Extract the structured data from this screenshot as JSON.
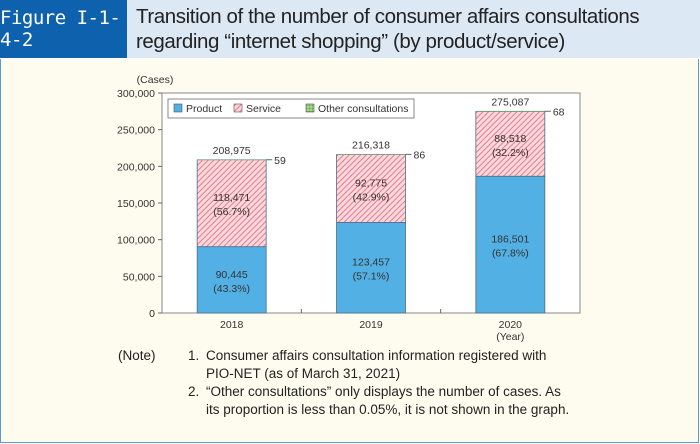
{
  "header": {
    "figure_label": "Figure I-1-4-2",
    "title_line1": "Transition of the number of consumer affairs consultations",
    "title_line2": "regarding “internet shopping” (by product/service)"
  },
  "chart_data": {
    "type": "bar",
    "stacked": true,
    "categories": [
      "2018",
      "2019",
      "2020"
    ],
    "xlabel": "(Year)",
    "ylabel": "(Cases)",
    "ylim": [
      0,
      300000
    ],
    "yticks": [
      0,
      50000,
      100000,
      150000,
      200000,
      250000,
      300000
    ],
    "ytick_labels": [
      "0",
      "50,000",
      "100,000",
      "150,000",
      "200,000",
      "250,000",
      "300,000"
    ],
    "legend_position": "top-left",
    "series": [
      {
        "name": "Product",
        "values": [
          90445,
          123457,
          186501
        ],
        "labels": [
          "90,445",
          "123,457",
          "186,501"
        ],
        "pct": [
          "(43.3%)",
          "(57.1%)",
          "(67.8%)"
        ],
        "color": "#52b0e4"
      },
      {
        "name": "Service",
        "values": [
          118471,
          92775,
          88518
        ],
        "labels": [
          "118,471",
          "92,775",
          "88,518"
        ],
        "pct": [
          "(56.7%)",
          "(42.9%)",
          "(32.2%)"
        ],
        "color": "#e87a8a"
      },
      {
        "name": "Other consultations",
        "values": [
          59,
          86,
          68
        ],
        "labels": [
          "59",
          "86",
          "68"
        ],
        "color": "#6cb04a"
      }
    ],
    "totals": [
      "208,975",
      "216,318",
      "275,087"
    ]
  },
  "notes": {
    "label": "(Note)",
    "items": [
      {
        "num": "1.",
        "lines": [
          "Consumer affairs consultation information registered with",
          "PIO-NET (as of March 31, 2021)"
        ]
      },
      {
        "num": "2.",
        "lines": [
          "“Other consultations” only displays the number of cases. As",
          "its proportion is less than 0.05%, it is not shown in the graph."
        ]
      }
    ]
  }
}
